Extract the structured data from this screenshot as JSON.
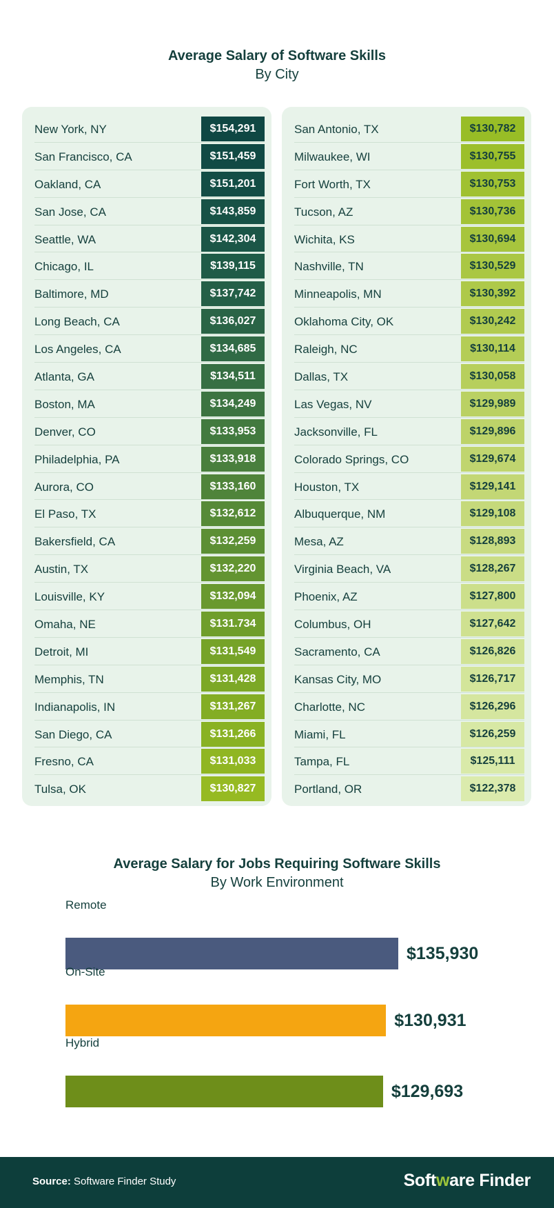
{
  "chart_data": [
    {
      "type": "table",
      "title": "Average Salary of Software Skills",
      "subtitle": "By City",
      "columns": [
        {
          "rows": [
            {
              "city": "New York, NY",
              "salary": "$154,291",
              "value": 154291,
              "color": "#0f4743"
            },
            {
              "city": "San Francisco, CA",
              "salary": "$151,459",
              "value": 151459,
              "color": "#114a44"
            },
            {
              "city": "Oakland, CA",
              "salary": "$151,201",
              "value": 151201,
              "color": "#134d45"
            },
            {
              "city": "San Jose, CA",
              "salary": "$143,859",
              "value": 143859,
              "color": "#175246"
            },
            {
              "city": "Seattle, WA",
              "salary": "$142,304",
              "value": 142304,
              "color": "#1b5647"
            },
            {
              "city": "Chicago, IL",
              "salary": "$139,115",
              "value": 139115,
              "color": "#1f5b47"
            },
            {
              "city": "Baltimore, MD",
              "salary": "$137,742",
              "value": 137742,
              "color": "#245f47"
            },
            {
              "city": "Long Beach, CA",
              "salary": "$136,027",
              "value": 136027,
              "color": "#2a6446"
            },
            {
              "city": "Los Angeles, CA",
              "salary": "$134,685",
              "value": 134685,
              "color": "#306a45"
            },
            {
              "city": "Atlanta, GA",
              "salary": "$134,511",
              "value": 134511,
              "color": "#366f43"
            },
            {
              "city": "Boston, MA",
              "salary": "$134,249",
              "value": 134249,
              "color": "#3c7441"
            },
            {
              "city": "Denver, CO",
              "salary": "$133,953",
              "value": 133953,
              "color": "#427a3f"
            },
            {
              "city": "Philadelphia, PA",
              "salary": "$133,918",
              "value": 133918,
              "color": "#497f3d"
            },
            {
              "city": "Aurora, CO",
              "salary": "$133,160",
              "value": 133160,
              "color": "#4f843a"
            },
            {
              "city": "El Paso, TX",
              "salary": "$132,612",
              "value": 132612,
              "color": "#568a37"
            },
            {
              "city": "Bakersfield, CA",
              "salary": "$132,259",
              "value": 132259,
              "color": "#5c8f34"
            },
            {
              "city": "Austin, TX",
              "salary": "$132,220",
              "value": 132220,
              "color": "#639431"
            },
            {
              "city": "Louisville, KY",
              "salary": "$132,094",
              "value": 132094,
              "color": "#69992e"
            },
            {
              "city": "Omaha, NE",
              "salary": "$131.734",
              "value": 131734,
              "color": "#6f9e2b"
            },
            {
              "city": "Detroit, MI",
              "salary": "$131,549",
              "value": 131549,
              "color": "#76a328"
            },
            {
              "city": "Memphis, TN",
              "salary": "$131,428",
              "value": 131428,
              "color": "#7ca826"
            },
            {
              "city": "Indianapolis, IN",
              "salary": "$131,267",
              "value": 131267,
              "color": "#83ad24"
            },
            {
              "city": "San Diego, CA",
              "salary": "$131,266",
              "value": 131266,
              "color": "#89b223"
            },
            {
              "city": "Fresno, CA",
              "salary": "$131,033",
              "value": 131033,
              "color": "#90b622"
            },
            {
              "city": "Tulsa, OK",
              "salary": "$130,827",
              "value": 130827,
              "color": "#96ba22"
            }
          ]
        },
        {
          "rows": [
            {
              "city": "San Antonio, TX",
              "salary": "$130,782",
              "value": 130782,
              "color": "#98bd26"
            },
            {
              "city": "Milwaukee, WI",
              "salary": "$130,755",
              "value": 130755,
              "color": "#9cbf2b"
            },
            {
              "city": "Fort Worth, TX",
              "salary": "$130,753",
              "value": 130753,
              "color": "#a0c131"
            },
            {
              "city": "Tucson, AZ",
              "salary": "$130,736",
              "value": 130736,
              "color": "#a3c337"
            },
            {
              "city": "Wichita, KS",
              "salary": "$130,694",
              "value": 130694,
              "color": "#a7c53d"
            },
            {
              "city": "Nashville, TN",
              "salary": "$130,529",
              "value": 130529,
              "color": "#aac743"
            },
            {
              "city": "Minneapolis, MN",
              "salary": "$130,392",
              "value": 130392,
              "color": "#aec949"
            },
            {
              "city": "Oklahoma City, OK",
              "salary": "$130,242",
              "value": 130242,
              "color": "#b1cb50"
            },
            {
              "city": "Raleigh, NC",
              "salary": "$130,114",
              "value": 130114,
              "color": "#b4cd56"
            },
            {
              "city": "Dallas, TX",
              "salary": "$130,058",
              "value": 130058,
              "color": "#b7cf5c"
            },
            {
              "city": "Las Vegas, NV",
              "salary": "$129,989",
              "value": 129989,
              "color": "#bad163"
            },
            {
              "city": "Jacksonville, FL",
              "salary": "$129,896",
              "value": 129896,
              "color": "#bdd369"
            },
            {
              "city": "Colorado Springs, CO",
              "salary": "$129,674",
              "value": 129674,
              "color": "#c0d56f"
            },
            {
              "city": "Houston, TX",
              "salary": "$129,141",
              "value": 129141,
              "color": "#c3d775"
            },
            {
              "city": "Albuquerque, NM",
              "salary": "$129,108",
              "value": 129108,
              "color": "#c5d97b"
            },
            {
              "city": "Mesa, AZ",
              "salary": "$128,893",
              "value": 128893,
              "color": "#c8db81"
            },
            {
              "city": "Virginia Beach, VA",
              "salary": "$128,267",
              "value": 128267,
              "color": "#cadd86"
            },
            {
              "city": "Phoenix, AZ",
              "salary": "$127,800",
              "value": 127800,
              "color": "#ccdf8b"
            },
            {
              "city": "Columbus, OH",
              "salary": "$127,642",
              "value": 127642,
              "color": "#cfe190"
            },
            {
              "city": "Sacramento, CA",
              "salary": "$126,826",
              "value": 126826,
              "color": "#d1e395"
            },
            {
              "city": "Kansas City, MO",
              "salary": "$126,717",
              "value": 126717,
              "color": "#d3e59a"
            },
            {
              "city": "Charlotte, NC",
              "salary": "$126,296",
              "value": 126296,
              "color": "#d5e69f"
            },
            {
              "city": "Miami, FL",
              "salary": "$126,259",
              "value": 126259,
              "color": "#d7e8a4"
            },
            {
              "city": "Tampa, FL",
              "salary": "$125,111",
              "value": 125111,
              "color": "#d9eaa9"
            },
            {
              "city": "Portland, OR",
              "salary": "$122,378",
              "value": 122378,
              "color": "#dbebad"
            }
          ]
        }
      ]
    },
    {
      "type": "bar",
      "orientation": "horizontal",
      "title": "Average Salary for Jobs Requiring Software Skills",
      "subtitle": "By Work Environment",
      "categories": [
        "Remote",
        "On-Site",
        "Hybrid"
      ],
      "values": [
        135930,
        130931,
        129693
      ],
      "value_labels": [
        "$135,930",
        "$130,931",
        "$129,693"
      ],
      "colors": [
        "#4a5a7e",
        "#f5a511",
        "#6e8e1a"
      ],
      "xlim": [
        0,
        135930
      ],
      "grid": false
    }
  ],
  "footer": {
    "source_label": "Source:",
    "source_text": "Software Finder Study",
    "logo_prefix": "Soft",
    "logo_w": "w",
    "logo_suffix": "are Finder"
  }
}
